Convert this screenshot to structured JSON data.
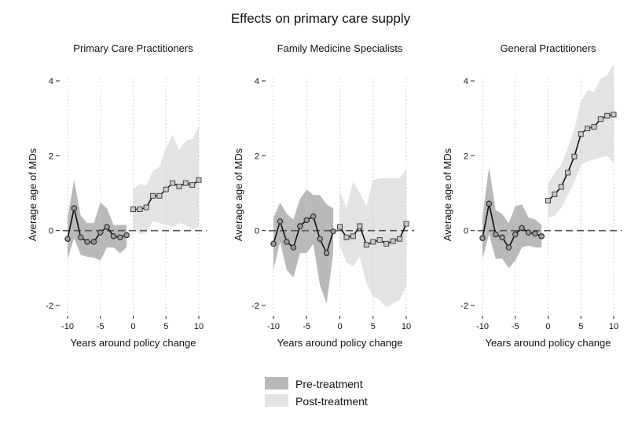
{
  "figure": {
    "title": "Effects on primary care supply",
    "legend": {
      "position": "bottom-center",
      "items": [
        {
          "label": "Pre-treatment",
          "color": "#b9b9b9"
        },
        {
          "label": "Post-treatment",
          "color": "#e3e3e3"
        }
      ]
    },
    "colors": {
      "line": "#111111",
      "pre_band": "#b9b9b9",
      "post_band": "#e3e3e3",
      "zero_line": "#555555",
      "grid": "#c8c8c8"
    }
  },
  "chart_data": [
    {
      "type": "line",
      "title": "Primary Care Practitioners",
      "xlabel": "Years around policy change",
      "ylabel": "Average age of MDs",
      "xlim": [
        -10,
        10
      ],
      "ylim": [
        -2,
        4
      ],
      "xticks": [
        -10,
        -5,
        0,
        5,
        10
      ],
      "xtick_labels": [
        "-10",
        "-5",
        "0",
        "5",
        "10"
      ],
      "yticks": [
        -2,
        0,
        2,
        4
      ],
      "ytick_labels": [
        "-2",
        "0",
        "2",
        "4"
      ],
      "series": [
        {
          "name": "Pre-treatment",
          "marker": "circle",
          "x": [
            -10,
            -9,
            -8,
            -7,
            -6,
            -5,
            -4,
            -3,
            -2,
            -1
          ],
          "y": [
            -0.22,
            0.6,
            -0.18,
            -0.3,
            -0.3,
            -0.05,
            0.1,
            -0.15,
            -0.18,
            -0.12
          ],
          "ci_low": [
            -0.75,
            -0.2,
            -0.65,
            -0.7,
            -0.72,
            -0.8,
            -0.45,
            -0.45,
            -0.6,
            -0.45
          ],
          "ci_high": [
            0.35,
            1.35,
            0.4,
            0.2,
            0.2,
            0.75,
            0.6,
            0.15,
            0.15,
            0.15
          ]
        },
        {
          "name": "Post-treatment",
          "marker": "square",
          "x": [
            0,
            1,
            2,
            3,
            4,
            5,
            6,
            7,
            8,
            9,
            10
          ],
          "y": [
            0.57,
            0.57,
            0.62,
            0.93,
            0.93,
            1.1,
            1.27,
            1.18,
            1.27,
            1.22,
            1.35
          ],
          "ci_low": [
            0.05,
            -0.1,
            -0.05,
            0.25,
            0.2,
            0.15,
            0.1,
            0.2,
            0.15,
            0.05,
            0.1
          ],
          "ci_high": [
            1.1,
            1.25,
            1.2,
            1.6,
            1.7,
            2.2,
            2.55,
            2.15,
            2.4,
            2.45,
            2.8
          ]
        }
      ]
    },
    {
      "type": "line",
      "title": "Family Medicine Specialists",
      "xlabel": "Years around policy change",
      "ylabel": "Average age of MDs",
      "xlim": [
        -10,
        10
      ],
      "ylim": [
        -2,
        4
      ],
      "xticks": [
        -10,
        -5,
        0,
        5,
        10
      ],
      "xtick_labels": [
        "-10",
        "-5",
        "0",
        "5",
        "10"
      ],
      "yticks": [
        -2,
        0,
        2,
        4
      ],
      "ytick_labels": [
        "-2",
        "0",
        "2",
        "4"
      ],
      "series": [
        {
          "name": "Pre-treatment",
          "marker": "circle",
          "x": [
            -10,
            -9,
            -8,
            -7,
            -6,
            -5,
            -4,
            -3,
            -2,
            -1
          ],
          "y": [
            -0.35,
            0.25,
            -0.3,
            -0.45,
            0.12,
            0.28,
            0.38,
            -0.22,
            -0.6,
            -0.02
          ],
          "ci_low": [
            -1.05,
            -0.3,
            -1.05,
            -1.25,
            -0.6,
            -0.6,
            -0.35,
            -1.45,
            -1.95,
            -0.6
          ],
          "ci_high": [
            0.35,
            0.75,
            0.45,
            0.3,
            0.85,
            1.1,
            0.95,
            0.95,
            0.7,
            0.6
          ]
        },
        {
          "name": "Post-treatment",
          "marker": "square",
          "x": [
            0,
            1,
            2,
            3,
            4,
            5,
            6,
            7,
            8,
            9,
            10
          ],
          "y": [
            0.1,
            -0.18,
            -0.15,
            0.12,
            -0.38,
            -0.3,
            -0.25,
            -0.35,
            -0.28,
            -0.22,
            0.18
          ],
          "ci_low": [
            -0.4,
            -0.85,
            -0.95,
            -0.7,
            -1.4,
            -1.75,
            -1.85,
            -2.05,
            -1.95,
            -1.85,
            -1.5
          ],
          "ci_high": [
            1.05,
            0.6,
            1.3,
            1.0,
            0.65,
            1.35,
            1.4,
            1.4,
            1.4,
            1.4,
            1.65
          ]
        }
      ]
    },
    {
      "type": "line",
      "title": "General Practitioners",
      "xlabel": "Years around policy change",
      "ylabel": "Average age of MDs",
      "xlim": [
        -10,
        10
      ],
      "ylim": [
        -2,
        4
      ],
      "xticks": [
        -10,
        -5,
        0,
        5,
        10
      ],
      "xtick_labels": [
        "-10",
        "-5",
        "0",
        "5",
        "10"
      ],
      "yticks": [
        -2,
        0,
        2,
        4
      ],
      "ytick_labels": [
        "-2",
        "0",
        "2",
        "4"
      ],
      "series": [
        {
          "name": "Pre-treatment",
          "marker": "circle",
          "x": [
            -10,
            -9,
            -8,
            -7,
            -6,
            -5,
            -4,
            -3,
            -2,
            -1
          ],
          "y": [
            -0.2,
            0.72,
            -0.1,
            -0.18,
            -0.45,
            -0.1,
            0.07,
            -0.05,
            -0.08,
            -0.15
          ],
          "ci_low": [
            -0.75,
            -0.1,
            -0.75,
            -0.75,
            -1.0,
            -0.8,
            -0.45,
            -0.4,
            -0.45,
            -0.45
          ],
          "ci_high": [
            0.35,
            1.7,
            0.55,
            0.45,
            0.2,
            0.65,
            0.7,
            0.35,
            0.3,
            0.15
          ]
        },
        {
          "name": "Post-treatment",
          "marker": "square",
          "x": [
            0,
            1,
            2,
            3,
            4,
            5,
            6,
            7,
            8,
            9,
            10
          ],
          "y": [
            0.8,
            0.97,
            1.17,
            1.55,
            1.98,
            2.58,
            2.73,
            2.77,
            2.98,
            3.07,
            3.1
          ],
          "ci_low": [
            0.35,
            0.4,
            0.6,
            0.95,
            1.3,
            1.75,
            1.85,
            1.9,
            1.95,
            2.0,
            1.8
          ],
          "ci_high": [
            1.25,
            1.55,
            1.75,
            2.2,
            2.7,
            3.45,
            3.75,
            3.7,
            4.05,
            4.15,
            4.45
          ]
        }
      ]
    }
  ]
}
